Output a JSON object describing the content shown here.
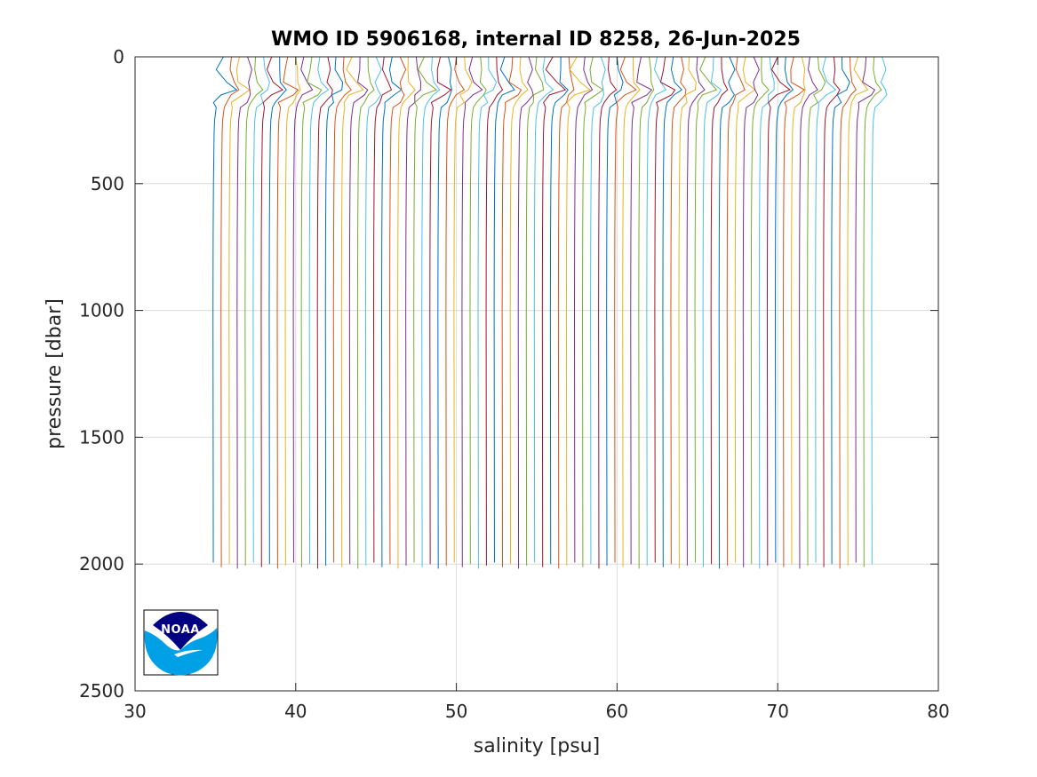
{
  "chart_data": {
    "type": "line",
    "title": "WMO ID 5906168, internal ID 8258, 26-Jun-2025",
    "xlabel": "salinity [psu]",
    "ylabel": "pressure [dbar]",
    "xlim": [
      30,
      80
    ],
    "ylim": [
      0,
      2500
    ],
    "y_reversed": true,
    "grid": true,
    "x_ticks": [
      30,
      40,
      50,
      60,
      70,
      80
    ],
    "y_ticks": [
      0,
      500,
      1000,
      1500,
      2000,
      2500
    ],
    "x_tick_labels": [
      "30",
      "40",
      "50",
      "60",
      "70",
      "80"
    ],
    "y_tick_labels": [
      "0",
      "500",
      "1000",
      "1500",
      "2000",
      "2500"
    ],
    "series_offset_psu": 0.5,
    "profile_count": 83,
    "base_profile": {
      "pressure": [
        0,
        50,
        100,
        130,
        150,
        180,
        200,
        250,
        300,
        400,
        500,
        700,
        1000,
        1500,
        2000
      ],
      "salinity": [
        35.5,
        35.45,
        35.6,
        35.95,
        35.55,
        35.2,
        35.05,
        34.95,
        34.92,
        34.9,
        34.88,
        34.86,
        34.85,
        34.86,
        34.87
      ]
    },
    "colors": [
      "#0072BD",
      "#D95319",
      "#EDB120",
      "#7E2F8E",
      "#77AC30",
      "#4DBEEE",
      "#A2142F"
    ]
  },
  "logo": {
    "name": "noaa-logo",
    "text": "NOAA",
    "colors": {
      "dark": "#000080",
      "light": "#00A0E6"
    }
  }
}
